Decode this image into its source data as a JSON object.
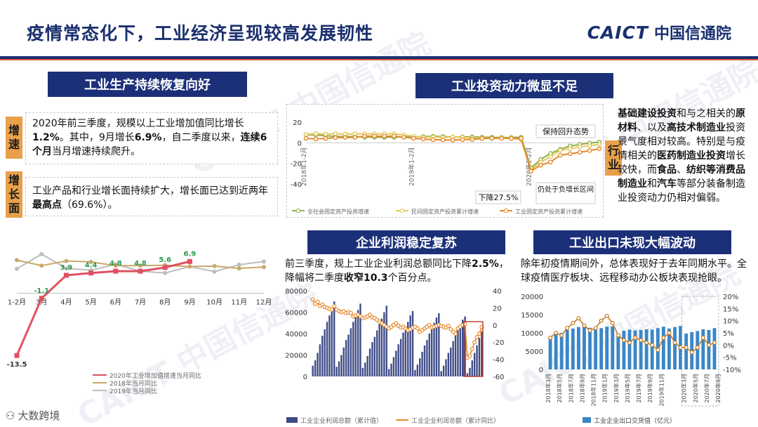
{
  "header": {
    "title": "疫情常态化下，工业经济呈现较高发展韧性",
    "logo_en": "CAICT",
    "logo_cn": "中国信通院"
  },
  "watermark": "CAICT 中国信通院",
  "bottom_logo": "大数跨境",
  "production": {
    "title": "工业生产持续恢复向好",
    "tag_speed": "增速",
    "tag_breadth": "增长面",
    "para1": "2020年前三季度，规模以上工业增加值同比增长1.2%。其中，9月增长6.9%，自二季度以来，连续6个月当月增速持续爬升。",
    "para2": "工业产品和行业增长面持续扩大，增长面已达到近两年最高点（69.6%）。"
  },
  "investment": {
    "title": "工业投资动力微显不足",
    "tag": "行业",
    "para": "基础建设投资和与之相关的原材料、以及高技术制造业投资景气度相对较高。特别是与疫情相关的医药制造业投资增长较快，而食品、纺织等消费品制造业和汽车等部分装备制造业投资动力仍相对偏弱。"
  },
  "profit": {
    "title": "企业利润稳定复苏",
    "para": "前三季度，规上工业企业利润总额同比下降2.5%，降幅将二季度收窄10.3个百分点。"
  },
  "export": {
    "title": "工业出口未现大幅波动",
    "para": "除年初疫情期间外，总体表现好于去年同期水平。全球疫情医疗板块、远程移动办公板块表现抢眼。"
  },
  "colors": {
    "navy": "#1c3079",
    "orange": "#e8a04a",
    "red": "#e05060",
    "bar": "#3d4a86",
    "line_orange": "#e58a2c",
    "olive": "#8db04a"
  },
  "chart_data": [
    {
      "id": "industrial_growth",
      "type": "line",
      "categories": [
        "1-2月",
        "3月",
        "4月",
        "5月",
        "6月",
        "7月",
        "8月",
        "9月",
        "10月",
        "11月",
        "12月"
      ],
      "series": [
        {
          "name": "2020年工业增加值增速当月同比",
          "values": [
            -13.5,
            -1.1,
            3.9,
            4.4,
            4.8,
            4.8,
            5.6,
            6.9,
            null,
            null,
            null
          ]
        },
        {
          "name": "2018年当月同比",
          "values": [
            7.2,
            6.0,
            7.0,
            6.8,
            6.0,
            6.0,
            6.1,
            5.8,
            5.9,
            5.4,
            5.7
          ]
        },
        {
          "name": "2019年当月同比",
          "values": [
            5.3,
            8.5,
            5.4,
            5.0,
            6.3,
            4.8,
            4.4,
            5.8,
            4.7,
            6.2,
            6.9
          ]
        }
      ],
      "data_labels": [
        "-13.5",
        "-1.1",
        "3.9",
        "4.4",
        "4.8",
        "4.8",
        "5.6",
        "6.9"
      ],
      "ylim": [
        -15,
        10
      ]
    },
    {
      "id": "fixed_asset_investment",
      "type": "line",
      "y_ticks": [
        "20",
        "0",
        "-20",
        "-40"
      ],
      "x_ticks": [
        "2018年1-2月",
        "2019年1-2月",
        "2020年1-2月"
      ],
      "series": [
        {
          "name": "全社会固定资产投资增速",
          "values": [
            7.9,
            7.5,
            7.0,
            6.1,
            6.1,
            6.0,
            5.5,
            5.4,
            5.3,
            5.4,
            5.7,
            5.9,
            6.1,
            6.3,
            6.1,
            5.6,
            5.8,
            5.7,
            5.5,
            5.4,
            5.2,
            5.2,
            5.4,
            -24.5,
            -16.1,
            -10.3,
            -6.3,
            -3.1,
            -1.6,
            -0.3,
            0.8
          ]
        },
        {
          "name": "民间固定资产投资累计增速",
          "values": [
            8.1,
            8.9,
            8.4,
            8.8,
            8.4,
            8.7,
            8.7,
            8.7,
            8.7,
            8.7,
            7.6,
            6.4,
            5.5,
            5.7,
            5.3,
            5.7,
            5.4,
            4.7,
            4.9,
            4.4,
            4.7,
            4.5,
            3.0,
            -26.4,
            -18.8,
            -13.3,
            -7.3,
            -5.7,
            -3.9,
            -2.8,
            -1.5
          ]
        },
        {
          "name": "工业固定资产投资累计增速",
          "values": [
            4.3,
            3.7,
            4.2,
            5.0,
            5.1,
            5.3,
            6.4,
            6.5,
            6.4,
            6.5,
            5.3,
            4.4,
            3.6,
            3.0,
            2.9,
            2.6,
            3.1,
            3.2,
            4.2,
            4.3,
            4.3,
            4.2,
            4.3,
            -27.5,
            -21.8,
            -18.6,
            -12.1,
            -10.6,
            -9.2,
            -7.5,
            -5.8
          ]
        }
      ],
      "annotations": [
        "保持回升态势",
        "下降27.5%",
        "仍处于负增长区间"
      ]
    },
    {
      "id": "industrial_profit",
      "type": "bar",
      "y_ticks_left": [
        "80000",
        "60000",
        "40000",
        "20000",
        "0"
      ],
      "y_ticks_right": [
        "40",
        "20",
        "0",
        "-20",
        "-40",
        "-60"
      ],
      "series": [
        {
          "name": "工业企业利润总额（累计值）",
          "values": [
            10000,
            15000,
            22000,
            30000,
            38000,
            44000,
            51000,
            57000,
            63000,
            70000,
            9000,
            14000,
            20000,
            27000,
            34000,
            39000,
            45000,
            51000,
            56000,
            62000,
            68000,
            8000,
            13000,
            19000,
            26000,
            32000,
            37000,
            43000,
            49000,
            54000,
            60000,
            66000,
            7000,
            12000,
            18000,
            24000,
            30000,
            35000,
            41000,
            46000,
            51000,
            57000,
            61000,
            6000,
            11000,
            17000,
            23000,
            29000,
            34000,
            40000,
            45000,
            50000,
            55000,
            59000,
            5000,
            10000,
            16000,
            22000,
            27000,
            33000,
            38000,
            43000,
            48000,
            53000,
            56000,
            3000,
            8000,
            15000,
            22000,
            29000,
            36000,
            42000
          ]
        },
        {
          "name": "工业企业利润总额（累计同比）",
          "values": [
            30,
            25,
            27,
            22,
            24,
            21,
            20,
            19,
            18,
            22,
            18,
            16,
            15,
            16,
            14,
            15,
            14,
            10,
            11,
            12,
            10,
            8,
            9,
            10,
            12,
            9,
            8,
            6,
            4,
            2,
            0,
            -2,
            -4,
            -2,
            0,
            2,
            -1,
            -3,
            -2,
            -4,
            -6,
            -5,
            -3,
            -2,
            -4,
            -8,
            -6,
            -4,
            -2,
            0,
            -3,
            -2,
            -1,
            0,
            -1,
            -2,
            -3,
            -1,
            -5,
            -8,
            -10,
            -4,
            -2,
            0,
            1,
            -38,
            -36,
            -28,
            -20,
            -14,
            -10,
            -2.5
          ]
        }
      ],
      "ylim_left": [
        0,
        80000
      ],
      "ylim_right": [
        -60,
        40
      ]
    },
    {
      "id": "industrial_export",
      "type": "bar",
      "y_ticks_left": [
        "20000",
        "15000",
        "10000",
        "5000",
        "0"
      ],
      "y_ticks_right": [
        "20%",
        "15%",
        "10%",
        "5%",
        "0%",
        "-5%",
        "-10%"
      ],
      "x_ticks": [
        "2018年3月",
        "2018年5月",
        "2018年7月",
        "2018年9月",
        "2018年11月",
        "2019年1月",
        "2019年3月",
        "2019年5月",
        "2019年7月",
        "2019年9月",
        "2019年11月",
        "2020年3月",
        "2020年5月",
        "2020年7月",
        "2020年9月"
      ],
      "series": [
        {
          "name": "工业企业出口交货值（亿元）",
          "values": [
            9000,
            10200,
            10000,
            10800,
            11200,
            11600,
            11800,
            11400,
            11600,
            11300,
            11700,
            11800,
            9100,
            10600,
            10900,
            10700,
            10800,
            11000,
            10900,
            11300,
            11700,
            11200,
            11600,
            11900,
            9800,
            10200,
            10500,
            11000,
            10800,
            11300
          ]
        },
        {
          "name": "出口交货值同比",
          "values": [
            3,
            5,
            4,
            7,
            9,
            11,
            8,
            6,
            7,
            10,
            12,
            9,
            4,
            2,
            1,
            3,
            2,
            1,
            0,
            -2,
            3,
            5,
            1,
            -1,
            -1,
            -3,
            -1,
            3,
            0,
            1
          ]
        }
      ],
      "ylim_left": [
        0,
        20000
      ],
      "ylim_right": [
        -10,
        20
      ]
    }
  ]
}
